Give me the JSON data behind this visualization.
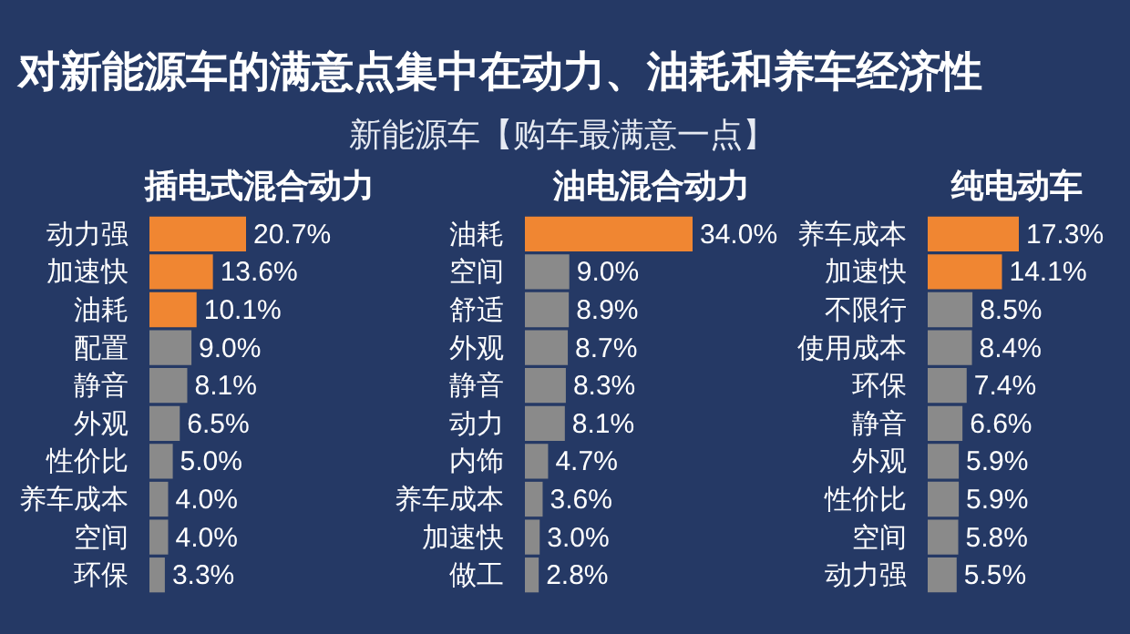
{
  "chart_data": [
    {
      "type": "other",
      "title": "对新能源车的满意点集中在动力、油耗和养车经济性",
      "subtitle": "新能源车【购车最满意一点】"
    },
    {
      "type": "bar",
      "orientation": "horizontal",
      "title": "插电式混合动力",
      "categories": [
        "动力强",
        "加速快",
        "油耗",
        "配置",
        "静音",
        "外观",
        "性价比",
        "养车成本",
        "空间",
        "环保"
      ],
      "values": [
        20.7,
        13.6,
        10.1,
        9.0,
        8.1,
        6.5,
        5.0,
        4.0,
        4.0,
        3.3
      ],
      "value_labels": [
        "20.7%",
        "13.6%",
        "10.1%",
        "9.0%",
        "8.1%",
        "6.5%",
        "5.0%",
        "4.0%",
        "4.0%",
        "3.3%"
      ],
      "colors": [
        "#f08632",
        "#f08632",
        "#f08632",
        "#8a8a8a",
        "#8a8a8a",
        "#8a8a8a",
        "#8a8a8a",
        "#8a8a8a",
        "#8a8a8a",
        "#8a8a8a"
      ]
    },
    {
      "type": "bar",
      "orientation": "horizontal",
      "title": "油电混合动力",
      "categories": [
        "油耗",
        "空间",
        "舒适",
        "外观",
        "静音",
        "动力",
        "内饰",
        "养车成本",
        "加速快",
        "做工"
      ],
      "values": [
        34.0,
        9.0,
        8.9,
        8.7,
        8.3,
        8.1,
        4.7,
        3.6,
        3.0,
        2.8
      ],
      "value_labels": [
        "34.0%",
        "9.0%",
        "8.9%",
        "8.7%",
        "8.3%",
        "8.1%",
        "4.7%",
        "3.6%",
        "3.0%",
        "2.8%"
      ],
      "colors": [
        "#f08632",
        "#8a8a8a",
        "#8a8a8a",
        "#8a8a8a",
        "#8a8a8a",
        "#8a8a8a",
        "#8a8a8a",
        "#8a8a8a",
        "#8a8a8a",
        "#8a8a8a"
      ]
    },
    {
      "type": "bar",
      "orientation": "horizontal",
      "title": "纯电动车",
      "categories": [
        "养车成本",
        "加速快",
        "不限行",
        "使用成本",
        "环保",
        "静音",
        "外观",
        "性价比",
        "空间",
        "动力强"
      ],
      "values": [
        17.3,
        14.1,
        8.5,
        8.4,
        7.4,
        6.6,
        5.9,
        5.9,
        5.8,
        5.5
      ],
      "value_labels": [
        "17.3%",
        "14.1%",
        "8.5%",
        "8.4%",
        "7.4%",
        "6.6%",
        "5.9%",
        "5.9%",
        "5.8%",
        "5.5%"
      ],
      "colors": [
        "#f08632",
        "#f08632",
        "#8a8a8a",
        "#8a8a8a",
        "#8a8a8a",
        "#8a8a8a",
        "#8a8a8a",
        "#8a8a8a",
        "#8a8a8a",
        "#8a8a8a"
      ]
    }
  ]
}
